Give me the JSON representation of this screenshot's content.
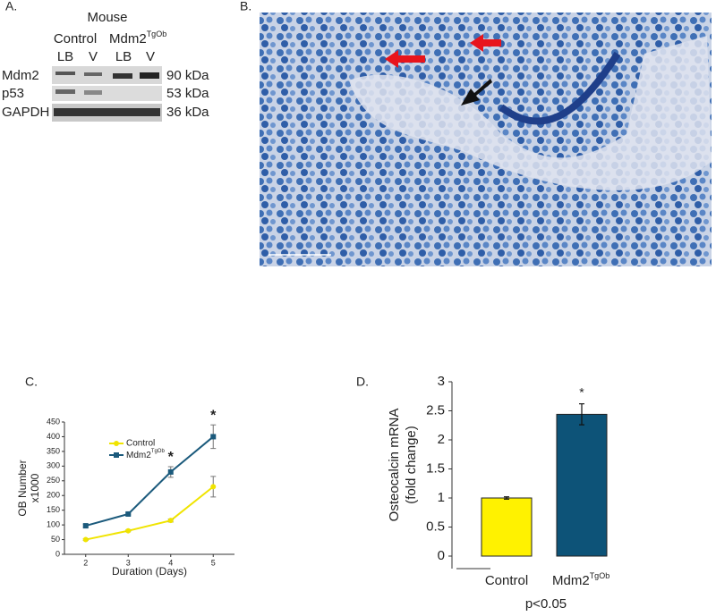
{
  "panel_a": {
    "label": "A.",
    "header": "Mouse",
    "groups": [
      "Control",
      "Mdm2"
    ],
    "superscript": "TgOb",
    "lanes": [
      "LB",
      "V",
      "LB",
      "V"
    ],
    "rows": [
      {
        "name": "Mdm2",
        "size": "90 kDa"
      },
      {
        "name": "p53",
        "size": "53 kDa"
      },
      {
        "name": "GAPDH",
        "size": "36 kDa"
      }
    ]
  },
  "panel_b": {
    "label": "B."
  },
  "chart_data": [
    {
      "type": "line",
      "panel_label": "C.",
      "x_label": "Duration (Days)",
      "y_label": [
        "OB Number",
        "x1000"
      ],
      "x": [
        2,
        3,
        4,
        5
      ],
      "xlim": [
        1.5,
        5.5
      ],
      "xticks": [
        2,
        3,
        4,
        5
      ],
      "ylim": [
        0,
        450
      ],
      "yticks": [
        0,
        50,
        100,
        150,
        200,
        250,
        300,
        350,
        400,
        450
      ],
      "series": [
        {
          "name": "Control",
          "color": "#f0e400",
          "marker": "circle",
          "values": [
            50,
            80,
            115,
            230
          ],
          "errors": [
            3,
            3,
            5,
            35
          ]
        },
        {
          "name": "Mdm2",
          "name_sup": "TgOb",
          "color": "#1b5a7c",
          "marker": "square",
          "values": [
            97,
            137,
            280,
            400
          ],
          "errors": [
            5,
            3,
            18,
            40
          ]
        }
      ],
      "annotations": [
        {
          "text": "*",
          "x": 4
        },
        {
          "text": "*",
          "x": 5
        }
      ]
    },
    {
      "type": "bar",
      "panel_label": "D.",
      "y_label": [
        "Osteocalcin mRNA",
        "(fold change)"
      ],
      "categories": [
        "Control",
        "Mdm2"
      ],
      "category_sup": "TgOb",
      "values": [
        1.0,
        2.44
      ],
      "errors": [
        0.02,
        0.18
      ],
      "colors": [
        "#fff200",
        "#0d5378"
      ],
      "ylim": [
        0,
        3
      ],
      "yticks": [
        0,
        0.5,
        1,
        1.5,
        2,
        2.5,
        3
      ],
      "annotation": "*",
      "footnote": "p<0.05"
    }
  ]
}
